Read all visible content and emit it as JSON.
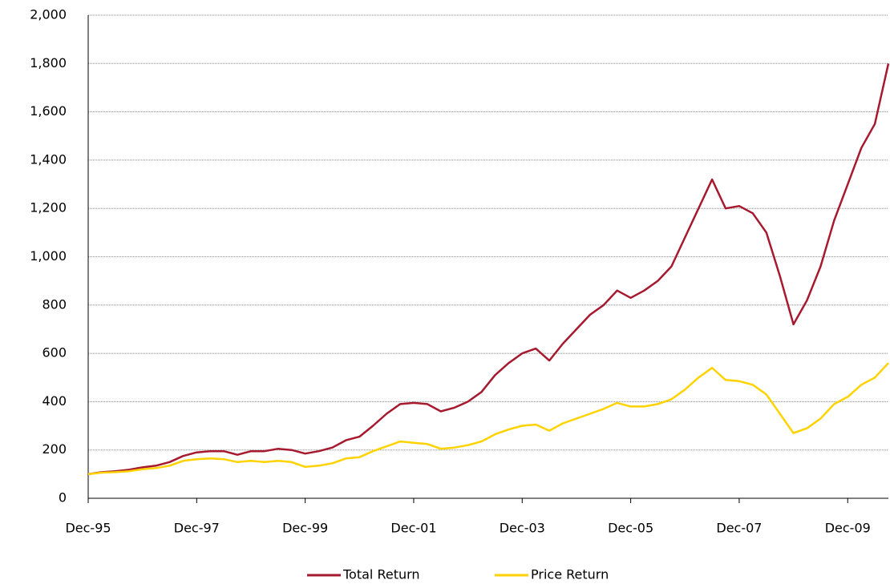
{
  "chart_data": {
    "type": "line",
    "categories": [
      "Dec-95",
      null,
      null,
      null,
      null,
      null,
      null,
      null,
      "Dec-97",
      null,
      null,
      null,
      null,
      null,
      null,
      null,
      "Dec-99",
      null,
      null,
      null,
      null,
      null,
      null,
      null,
      "Dec-01",
      null,
      null,
      null,
      null,
      null,
      null,
      null,
      "Dec-03",
      null,
      null,
      null,
      null,
      null,
      null,
      null,
      "Dec-05",
      null,
      null,
      null,
      null,
      null,
      null,
      null,
      "Dec-07",
      null,
      null,
      null,
      null,
      null,
      null,
      null,
      "Dec-09",
      null,
      null,
      null
    ],
    "series": [
      {
        "name": "Total Return",
        "color": "#a6192e",
        "values": [
          100,
          108,
          112,
          118,
          128,
          135,
          150,
          175,
          190,
          195,
          195,
          180,
          195,
          195,
          205,
          200,
          185,
          195,
          210,
          240,
          255,
          300,
          350,
          390,
          395,
          390,
          360,
          375,
          400,
          440,
          510,
          560,
          600,
          620,
          570,
          640,
          700,
          760,
          800,
          860,
          830,
          860,
          900,
          960,
          1080,
          1200,
          1320,
          1200,
          1210,
          1180,
          1100,
          920,
          720,
          820,
          960,
          1150,
          1300,
          1450,
          1550,
          1800
        ]
      },
      {
        "name": "Price Return",
        "color": "#ffd200",
        "values": [
          100,
          106,
          108,
          112,
          120,
          125,
          135,
          155,
          162,
          165,
          162,
          150,
          155,
          150,
          155,
          150,
          130,
          135,
          145,
          165,
          170,
          195,
          215,
          235,
          230,
          225,
          205,
          210,
          220,
          235,
          265,
          285,
          300,
          305,
          280,
          310,
          330,
          350,
          370,
          395,
          380,
          380,
          390,
          410,
          450,
          500,
          540,
          490,
          485,
          470,
          430,
          350,
          270,
          290,
          330,
          390,
          420,
          470,
          500,
          560
        ]
      }
    ],
    "ylim": [
      0,
      2000
    ],
    "yticks": [
      0,
      200,
      400,
      600,
      800,
      {
        "value": 1000,
        "label": "1,000"
      },
      {
        "value": 1200,
        "label": "1,200"
      },
      {
        "value": 1400,
        "label": "1,400"
      },
      {
        "value": 1600,
        "label": "1,600"
      },
      {
        "value": 1800,
        "label": "1,800"
      },
      {
        "value": 2000,
        "label": "2,000"
      }
    ],
    "grid": true
  }
}
